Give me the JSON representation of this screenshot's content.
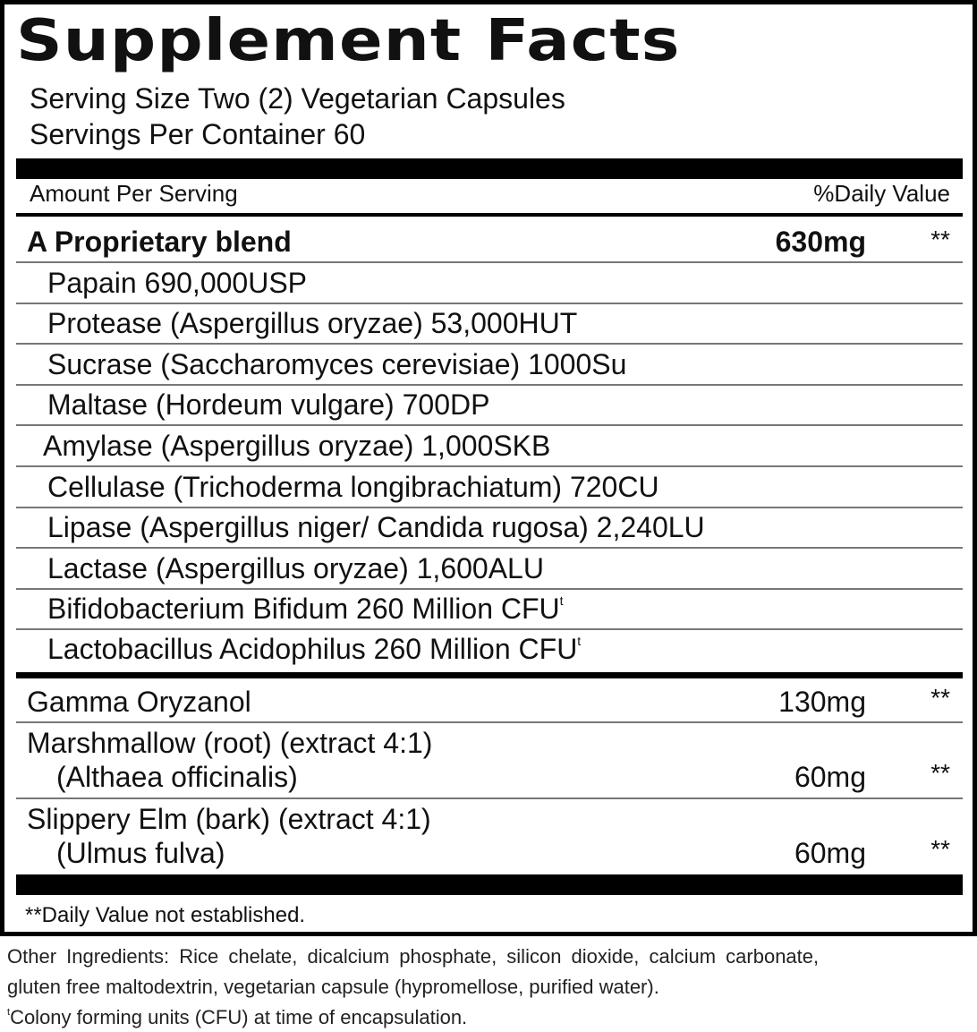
{
  "title": "Supplement Facts",
  "serving_size": "Serving Size Two (2) Vegetarian Capsules",
  "servings_per_container": "Servings Per Container 60",
  "header": {
    "amount": "Amount Per Serving",
    "dv": "%Daily Value"
  },
  "blend": {
    "name": "A Proprietary blend",
    "amount": "630mg",
    "dv": "**"
  },
  "blend_items": [
    "Papain  690,000USP",
    "Protease (Aspergillus oryzae) 53,000HUT",
    "Sucrase (Saccharomyces cerevisiae) 1000Su",
    "Maltase (Hordeum vulgare) 700DP",
    "Amylase (Aspergillus oryzae) 1,000SKB",
    "Cellulase (Trichoderma longibrachiatum) 720CU",
    "Lipase (Aspergillus niger/ Candida rugosa) 2,240LU",
    "Lactase (Aspergillus oryzae) 1,600ALU",
    "Bifidobacterium Bifidum 260 Million CFU",
    "Lactobacillus Acidophilus 260 Million CFU"
  ],
  "superscript": "t",
  "other_rows": [
    {
      "name": "Gamma Oryzanol",
      "amount": "130mg",
      "dv": "**"
    },
    {
      "name": "Marshmallow (root) (extract 4:1)",
      "name2": "(Althaea officinalis)",
      "amount": "60mg",
      "dv": "**"
    },
    {
      "name": "Slippery Elm (bark) (extract 4:1)",
      "name2": "(Ulmus fulva)",
      "amount": "60mg",
      "dv": "**"
    }
  ],
  "footnote": "**Daily Value not established.",
  "other_ingredients": [
    "Other Ingredients: Rice chelate, dicalcium phosphate, silicon dioxide, calcium carbonate,",
    "gluten free maltodextrin, vegetarian capsule (hypromellose, purified water)."
  ],
  "cfu_note": "Colony forming units (CFU) at time of encapsulation."
}
